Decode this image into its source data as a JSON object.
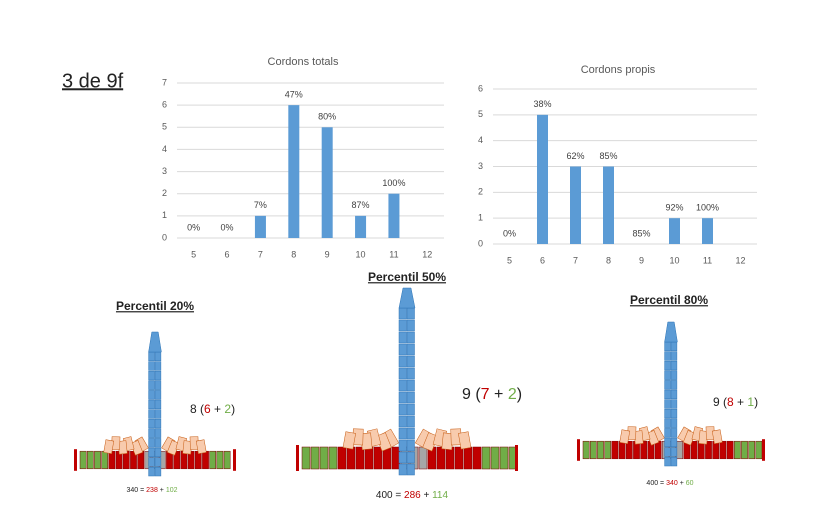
{
  "slide": {
    "title": "3 de 9f",
    "towers": [
      {
        "label": "Percentil 20%",
        "formula": [
          "8 (",
          "6",
          " + ",
          "2",
          ")"
        ],
        "total": [
          "340 = ",
          "238",
          " + ",
          "102"
        ]
      },
      {
        "label": "Percentil 50%",
        "formula": [
          "9 (",
          "7",
          " + ",
          "2",
          ")"
        ],
        "total": [
          "400 = ",
          "286",
          " + ",
          "114"
        ]
      },
      {
        "label": "Percentil 80%",
        "formula": [
          "9 (",
          "8",
          " + ",
          "1",
          ")"
        ],
        "total": [
          "400 = ",
          "340",
          " + ",
          "60"
        ]
      }
    ]
  },
  "chart_data": [
    {
      "type": "bar",
      "title": "Cordons totals",
      "categories": [
        "5",
        "6",
        "7",
        "8",
        "9",
        "10",
        "11",
        "12"
      ],
      "values": [
        0,
        0,
        1,
        6,
        5,
        1,
        2,
        0
      ],
      "annotations": [
        "0%",
        "0%",
        "7%",
        "47%",
        "80%",
        "87%",
        "100%",
        null
      ],
      "color": "#5b9bd5",
      "ylim": [
        0,
        7
      ],
      "yticks": [
        0,
        1,
        2,
        3,
        4,
        5,
        6,
        7
      ],
      "grid": true
    },
    {
      "type": "bar",
      "title": "Cordons propis",
      "categories": [
        "5",
        "6",
        "7",
        "8",
        "9",
        "10",
        "11",
        "12"
      ],
      "values": [
        0,
        5,
        3,
        3,
        0,
        1,
        1,
        0
      ],
      "annotations": [
        "0%",
        "38%",
        "62%",
        "85%",
        "85%",
        "92%",
        "100%",
        null
      ],
      "color": "#5b9bd5",
      "ylim": [
        0,
        6
      ],
      "yticks": [
        0,
        1,
        2,
        3,
        4,
        5,
        6
      ],
      "grid": true
    }
  ]
}
